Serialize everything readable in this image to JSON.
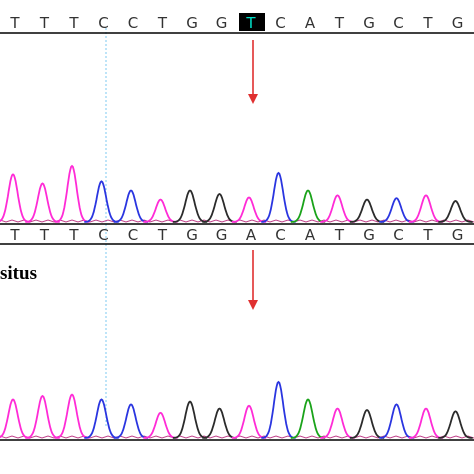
{
  "colors": {
    "A": "#1aa31a",
    "C": "#2a35e0",
    "G": "#2b2b2b",
    "T": "#ff2bd6",
    "highlight_fill": "#000000",
    "highlight_text": "#00e0c8",
    "marker": "#e03030",
    "guide": "#7ec8f0"
  },
  "icons": {
    "variant_marker": "down-arrow-icon"
  },
  "panels": [
    {
      "label": "",
      "sequence": [
        "T",
        "T",
        "T",
        "C",
        "C",
        "T",
        "G",
        "G",
        "T",
        "C",
        "A",
        "T",
        "G",
        "C",
        "T",
        "G"
      ],
      "highlight_index": 8,
      "peaks": [
        "T",
        "T",
        "T",
        "C",
        "C",
        "T",
        "G",
        "G",
        "T",
        "C",
        "A",
        "T",
        "G",
        "C",
        "T",
        "G"
      ]
    },
    {
      "label": "",
      "sequence": [
        "T",
        "T",
        "T",
        "C",
        "C",
        "T",
        "G",
        "G",
        "A",
        "C",
        "A",
        "T",
        "G",
        "C",
        "T",
        "G"
      ],
      "highlight_index": -1,
      "peaks": [
        "T",
        "T",
        "T",
        "C",
        "C",
        "T",
        "G",
        "G",
        "A",
        "C",
        "A",
        "T",
        "G",
        "C",
        "T",
        "G"
      ]
    },
    {
      "label": "situs",
      "sequence": [],
      "highlight_index": -1,
      "peaks": [
        "T",
        "T",
        "T",
        "C",
        "C",
        "T",
        "G",
        "G",
        "T",
        "C",
        "A",
        "T",
        "G",
        "C",
        "T",
        "G"
      ]
    }
  ]
}
